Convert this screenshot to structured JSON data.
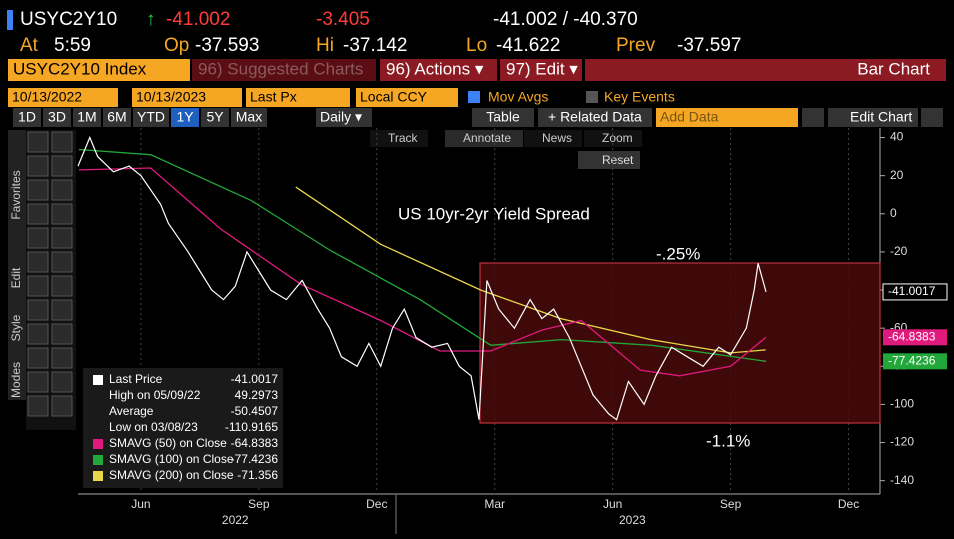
{
  "header": {
    "ticker": "USYC2Y10",
    "arrow": "↑",
    "last": "-41.002",
    "change": "-3.405",
    "bid_ask": "-41.002 / -40.370",
    "time_label": "At",
    "time": "5:59",
    "open_label": "Op",
    "open": "-37.593",
    "high_label": "Hi",
    "high": "-37.142",
    "low_label": "Lo",
    "low": "-41.622",
    "prev_label": "Prev",
    "prev": "-37.597"
  },
  "menu": {
    "security": "USYC2Y10 Index",
    "suggested": "96) Suggested Charts",
    "actions": "96) Actions ▾",
    "edit": "97) Edit ▾",
    "chart_kind": "Bar Chart"
  },
  "settings": {
    "start": "10/13/2022",
    "end": "10/13/2023",
    "field": "Last Px",
    "currency": "Local CCY",
    "mov_avgs": "Mov Avgs",
    "key_events": "Key Events"
  },
  "toolbar": {
    "periods": [
      "1D",
      "3D",
      "1M",
      "6M",
      "YTD",
      "1Y",
      "5Y",
      "Max"
    ],
    "frequency": "Daily ▾",
    "table": "Table",
    "related": "+ Related Data",
    "add": "Add Data",
    "edit_chart": "Edit Chart"
  },
  "chart_tools": [
    "Track",
    "Annotate",
    "News",
    "Zoom",
    "Reset"
  ],
  "sidebar": [
    "Favorites",
    "Edit",
    "Style",
    "Modes"
  ],
  "chart_data": {
    "type": "line",
    "title": "US 10yr-2yr Yield Spread",
    "annotations": [
      "-.25%",
      "-1.1%"
    ],
    "xlim": [
      3.9,
      24.3
    ],
    "xticks": [
      {
        "value": 5.5,
        "label": "Jun"
      },
      {
        "value": 8.5,
        "label": "Sep"
      },
      {
        "value": 11.5,
        "label": "Dec"
      },
      {
        "value": 14.5,
        "label": "Mar"
      },
      {
        "value": 17.5,
        "label": "Jun"
      },
      {
        "value": 20.5,
        "label": "Sep"
      },
      {
        "value": 23.5,
        "label": "Dec"
      }
    ],
    "year_labels": [
      {
        "value": 7.9,
        "label": "2022"
      },
      {
        "value": 18,
        "label": "2023"
      }
    ],
    "ylim": [
      -147,
      45
    ],
    "yticks": [
      40,
      20,
      0,
      -20,
      -40,
      -60,
      -80,
      -100,
      -120,
      -140
    ],
    "series": [
      {
        "name": "Last Price",
        "color": "#ffffff",
        "legend_value": "-41.0017",
        "x": [
          3.9,
          4.2,
          4.4,
          4.8,
          5.2,
          5.5,
          6.0,
          6.2,
          6.7,
          7.0,
          7.3,
          7.6,
          7.9,
          8.2,
          8.5,
          8.8,
          9.2,
          9.6,
          10.0,
          10.3,
          10.6,
          11.0,
          11.3,
          11.6,
          11.9,
          12.2,
          12.5,
          12.9,
          13.3,
          13.6,
          13.9,
          14.1,
          14.3,
          14.6,
          15.0,
          15.4,
          15.7,
          16.0,
          16.4,
          16.7,
          17.0,
          17.4,
          17.6,
          17.9,
          18.3,
          18.6,
          19.0,
          19.4,
          19.8,
          20.2,
          20.5,
          20.9,
          21.1,
          21.2,
          21.4
        ],
        "values": [
          25,
          40,
          30,
          22,
          25,
          20,
          5,
          -5,
          -20,
          -30,
          -40,
          -45,
          -38,
          -20,
          -30,
          -40,
          -45,
          -35,
          -50,
          -60,
          -75,
          -80,
          -68,
          -80,
          -60,
          -50,
          -65,
          -70,
          -68,
          -80,
          -85,
          -108,
          -35,
          -50,
          -60,
          -45,
          -55,
          -50,
          -65,
          -80,
          -95,
          -105,
          -108,
          -88,
          -100,
          -85,
          -70,
          -75,
          -80,
          -70,
          -74,
          -60,
          -40,
          -26,
          -41
        ]
      },
      {
        "name": "SMAVG (50)  on Close",
        "color": "#e0197d",
        "legend_value": "-64.8383",
        "x": [
          3.92,
          5.75,
          7.53,
          9.57,
          11.6,
          13.1,
          14.4,
          15.7,
          16.7,
          18.2,
          19.2,
          20.5,
          21.4
        ],
        "values": [
          23,
          24,
          -8,
          -37,
          -56,
          -72,
          -72,
          -61,
          -56,
          -82,
          -85,
          -80,
          -64.8
        ]
      },
      {
        "name": "SMAVG (100)  on Close",
        "color": "#22a83a",
        "legend_value": "-77.4236",
        "x": [
          3.92,
          5.75,
          8.3,
          10.3,
          12.6,
          14.4,
          16.2,
          18.5,
          21.4
        ],
        "values": [
          33.7,
          31,
          7,
          -19,
          -45,
          -69,
          -66,
          -69,
          -77.4
        ]
      },
      {
        "name": "SMAVG (200)  on Close",
        "color": "#e8d84a",
        "legend_value": "-71.356",
        "x": [
          9.44,
          11.6,
          14.14,
          16.18,
          18.47,
          20.5,
          21.39
        ],
        "values": [
          14,
          -16,
          -40,
          -55,
          -66,
          -73,
          -71.4
        ]
      }
    ],
    "stats": [
      {
        "label": "High on 05/09/22",
        "value": "49.2973"
      },
      {
        "label": "Average",
        "value": "-50.4507"
      },
      {
        "label": "Low on 03/08/23",
        "value": "-110.9165"
      }
    ]
  }
}
